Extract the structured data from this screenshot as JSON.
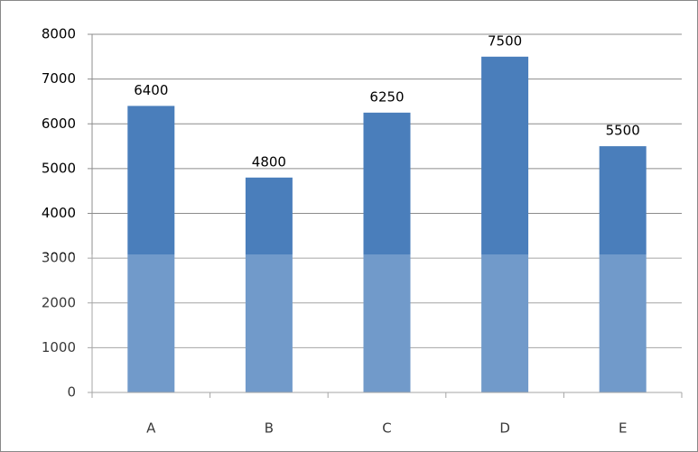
{
  "chart_data": {
    "type": "bar",
    "categories": [
      "A",
      "B",
      "C",
      "D",
      "E"
    ],
    "values": [
      6400,
      4800,
      6250,
      7500,
      5500
    ],
    "color": "#4a7ebb",
    "ylim": [
      0,
      8000
    ],
    "yticks": [
      0,
      1000,
      2000,
      3000,
      4000,
      5000,
      6000,
      7000,
      8000
    ],
    "grid": true,
    "data_labels": true
  }
}
